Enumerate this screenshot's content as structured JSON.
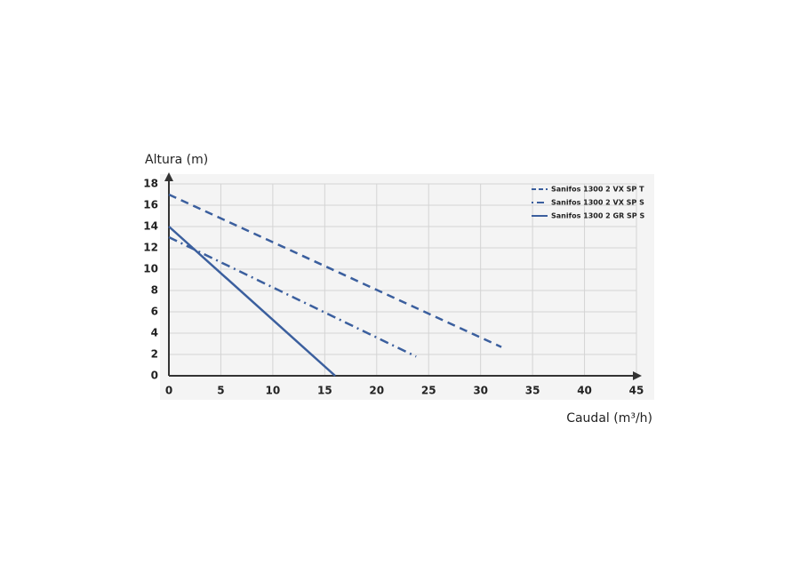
{
  "chart_data": {
    "type": "line",
    "ylabel": "Altura (m)",
    "xlabel": "Caudal (m³/h)",
    "xlim": [
      0,
      45
    ],
    "xticks": [
      0,
      5,
      10,
      15,
      20,
      25,
      30,
      35,
      40,
      45
    ],
    "ylim": [
      0,
      18
    ],
    "yticks": [
      0,
      2,
      4,
      6,
      8,
      10,
      12,
      14,
      16,
      18
    ],
    "grid": true,
    "legend": "top-right",
    "series": [
      {
        "name": "Sanifos 1300 2 VX SP T",
        "color": "#3b5f9e",
        "style": "dashed",
        "x": [
          0,
          32
        ],
        "values": [
          17,
          2.7
        ]
      },
      {
        "name": "Sanifos 1300 2 VX SP S",
        "color": "#3b5f9e",
        "style": "dashdot",
        "x": [
          0,
          23.8
        ],
        "values": [
          13,
          1.8
        ]
      },
      {
        "name": "Sanifos 1300 2 GR SP S",
        "color": "#3b5f9e",
        "style": "solid",
        "x": [
          0,
          16
        ],
        "values": [
          14,
          0
        ]
      }
    ]
  }
}
